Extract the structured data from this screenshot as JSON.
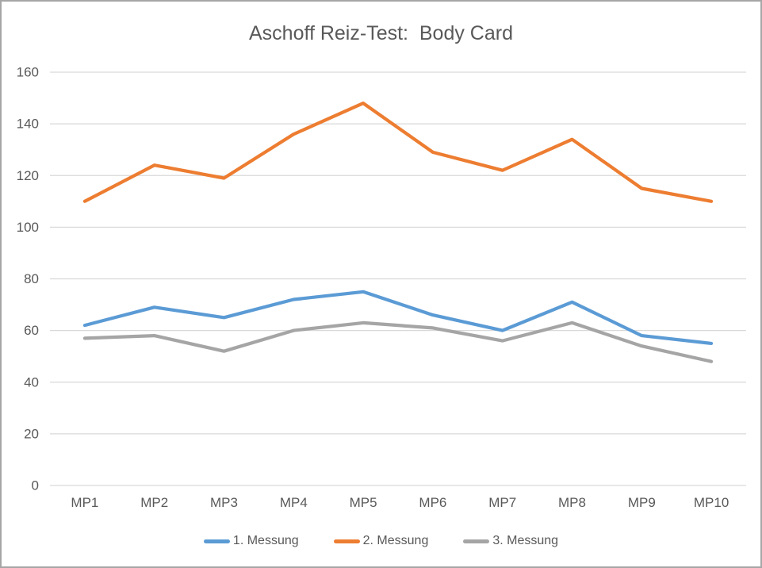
{
  "chart_data": {
    "type": "line",
    "title": "Aschoff Reiz-Test:  Body Card",
    "categories": [
      "MP1",
      "MP2",
      "MP3",
      "MP4",
      "MP5",
      "MP6",
      "MP7",
      "MP8",
      "MP9",
      "MP10"
    ],
    "series": [
      {
        "name": "1. Messung",
        "color": "#5b9bd5",
        "values": [
          62,
          69,
          65,
          72,
          75,
          66,
          60,
          71,
          58,
          55
        ]
      },
      {
        "name": "2. Messung",
        "color": "#ed7d31",
        "values": [
          110,
          124,
          119,
          136,
          148,
          129,
          122,
          134,
          115,
          110
        ]
      },
      {
        "name": "3. Messung",
        "color": "#a5a5a5",
        "values": [
          57,
          58,
          52,
          60,
          63,
          61,
          56,
          63,
          54,
          48
        ]
      }
    ],
    "xlabel": "",
    "ylabel": "",
    "ylim": [
      0,
      160
    ],
    "ytick_step": 20,
    "grid": true,
    "legend_position": "bottom",
    "text_color": "#595959",
    "grid_color": "#d9d9d9"
  }
}
